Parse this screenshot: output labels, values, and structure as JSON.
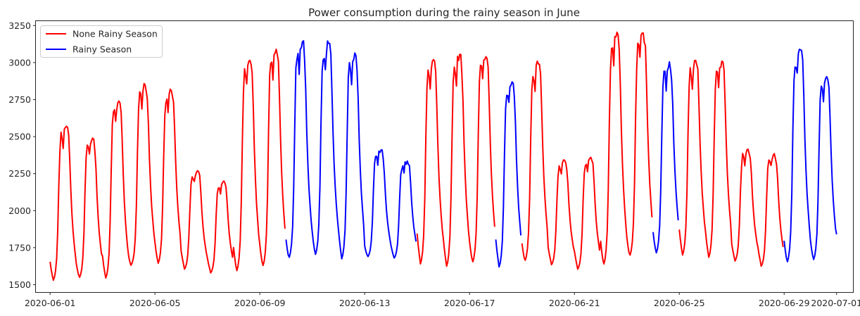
{
  "chart_data": {
    "type": "line",
    "title": "Power consumption during the rainy season in June",
    "xlabel": "",
    "ylabel": "",
    "xlim": [
      "2020-05-31T11:00",
      "2020-07-01T15:00"
    ],
    "ylim": [
      1450,
      3280
    ],
    "xticks": [
      "2020-06-01",
      "2020-06-05",
      "2020-06-09",
      "2020-06-13",
      "2020-06-17",
      "2020-06-21",
      "2020-06-25",
      "2020-06-29",
      "2020-07-01"
    ],
    "yticks": [
      1500,
      1750,
      2000,
      2250,
      2500,
      2750,
      3000,
      3250
    ],
    "grid": false,
    "legend_position": "upper-left",
    "colors": {
      "none_rainy": "#ff0000",
      "rainy": "#0000ff",
      "axis": "#262626"
    },
    "daily": [
      {
        "date": "2020-06-01",
        "season": "none",
        "min": 1530,
        "max": 2570
      },
      {
        "date": "2020-06-02",
        "season": "none",
        "min": 1550,
        "max": 2490
      },
      {
        "date": "2020-06-03",
        "season": "none",
        "min": 1545,
        "max": 2740
      },
      {
        "date": "2020-06-04",
        "season": "none",
        "min": 1645,
        "max": 2850
      },
      {
        "date": "2020-06-05",
        "season": "none",
        "min": 1645,
        "max": 2810
      },
      {
        "date": "2020-06-06",
        "season": "none",
        "min": 1605,
        "max": 2270
      },
      {
        "date": "2020-06-07",
        "season": "none",
        "min": 1580,
        "max": 2200
      },
      {
        "date": "2020-06-08",
        "season": "none",
        "min": 1595,
        "max": 3015
      },
      {
        "date": "2020-06-09",
        "season": "none",
        "min": 1630,
        "max": 3090
      },
      {
        "date": "2020-06-10",
        "season": "rainy",
        "min": 1685,
        "max": 3140
      },
      {
        "date": "2020-06-11",
        "season": "rainy",
        "min": 1705,
        "max": 3130
      },
      {
        "date": "2020-06-12",
        "season": "rainy",
        "min": 1675,
        "max": 3065
      },
      {
        "date": "2020-06-13",
        "season": "rainy",
        "min": 1690,
        "max": 2410
      },
      {
        "date": "2020-06-14",
        "season": "rainy",
        "min": 1680,
        "max": 2335
      },
      {
        "date": "2020-06-15",
        "season": "none",
        "min": 1640,
        "max": 3020
      },
      {
        "date": "2020-06-16",
        "season": "none",
        "min": 1625,
        "max": 3055
      },
      {
        "date": "2020-06-17",
        "season": "none",
        "min": 1655,
        "max": 3040
      },
      {
        "date": "2020-06-18",
        "season": "rainy",
        "min": 1620,
        "max": 2870
      },
      {
        "date": "2020-06-19",
        "season": "none",
        "min": 1665,
        "max": 2990
      },
      {
        "date": "2020-06-20",
        "season": "none",
        "min": 1635,
        "max": 2340
      },
      {
        "date": "2020-06-21",
        "season": "none",
        "min": 1605,
        "max": 2360
      },
      {
        "date": "2020-06-22",
        "season": "none",
        "min": 1640,
        "max": 3205
      },
      {
        "date": "2020-06-23",
        "season": "none",
        "min": 1700,
        "max": 3200
      },
      {
        "date": "2020-06-24",
        "season": "rainy",
        "min": 1715,
        "max": 3005
      },
      {
        "date": "2020-06-25",
        "season": "none",
        "min": 1700,
        "max": 3015
      },
      {
        "date": "2020-06-26",
        "season": "none",
        "min": 1685,
        "max": 3010
      },
      {
        "date": "2020-06-27",
        "season": "none",
        "min": 1660,
        "max": 2415
      },
      {
        "date": "2020-06-28",
        "season": "none",
        "min": 1625,
        "max": 2385
      },
      {
        "date": "2020-06-29",
        "season": "rainy",
        "min": 1655,
        "max": 3085
      },
      {
        "date": "2020-06-30",
        "season": "rainy",
        "min": 1670,
        "max": 2905
      }
    ],
    "end_value": 1840,
    "series": [
      {
        "name": "None Rainy Season",
        "color": "#ff0000"
      },
      {
        "name": "Rainy Season",
        "color": "#0000ff"
      }
    ]
  }
}
